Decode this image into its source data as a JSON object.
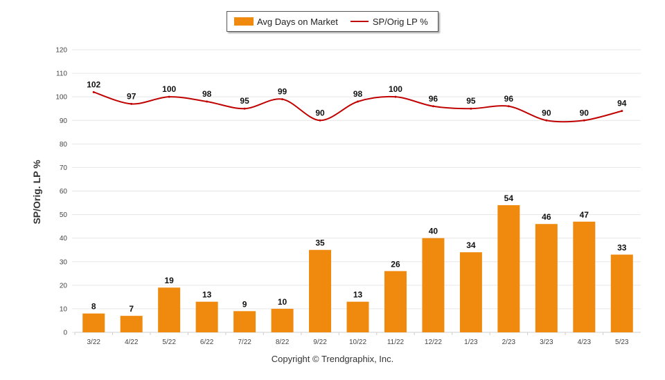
{
  "chart_data": {
    "type": "bar",
    "ylabel": "SP/Orig. LP %",
    "ylim": [
      0,
      120
    ],
    "yticks": [
      0,
      10,
      20,
      30,
      40,
      50,
      60,
      70,
      80,
      90,
      100,
      110,
      120
    ],
    "grid": true,
    "legend_position": "top-center",
    "categories": [
      "3/22",
      "4/22",
      "5/22",
      "6/22",
      "7/22",
      "8/22",
      "9/22",
      "10/22",
      "11/22",
      "12/22",
      "1/23",
      "2/23",
      "3/23",
      "4/23",
      "5/23"
    ],
    "series": [
      {
        "name": "Avg Days on Market",
        "type": "bar",
        "color": "#F08A0F",
        "values": [
          8,
          7,
          19,
          13,
          9,
          10,
          35,
          13,
          26,
          40,
          34,
          54,
          46,
          47,
          33
        ]
      },
      {
        "name": "SP/Orig LP %",
        "type": "line",
        "color": "#C00000",
        "values": [
          102,
          97,
          100,
          98,
          95,
          99,
          90,
          98,
          100,
          96,
          95,
          96,
          90,
          90,
          94
        ]
      }
    ]
  },
  "footer": {
    "copyright": "Copyright © Trendgraphix, Inc."
  }
}
